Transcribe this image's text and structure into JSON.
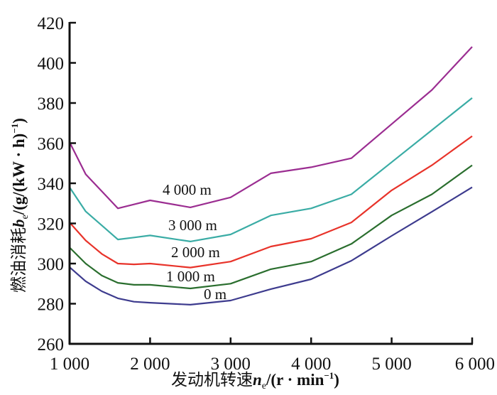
{
  "chart_data": {
    "type": "line",
    "title": "",
    "xlabel": {
      "main": "发动机转速",
      "var": "n",
      "sub": "e",
      "unit_pre": "/(r · min",
      "unit_sup": "−1",
      "unit_post": ")"
    },
    "ylabel": {
      "main": "燃油消耗",
      "var": "b",
      "sub": "e",
      "unit_pre": "/(g/(kW · h)",
      "unit_sup": "−1",
      "unit_post": ")"
    },
    "xlim": [
      1000,
      6000
    ],
    "ylim": [
      260,
      420
    ],
    "xticks": [
      1000,
      2000,
      3000,
      4000,
      5000,
      6000
    ],
    "xtick_labels": [
      "1 000",
      "2 000",
      "3 000",
      "4 000",
      "5 000",
      "6 000"
    ],
    "yticks": [
      260,
      280,
      300,
      320,
      340,
      360,
      380,
      400,
      420
    ],
    "ytick_labels": [
      "260",
      "280",
      "300",
      "320",
      "340",
      "360",
      "380",
      "400",
      "420"
    ],
    "grid": false,
    "x": [
      1000,
      1200,
      1400,
      1600,
      1800,
      2000,
      2500,
      3000,
      3500,
      4000,
      4500,
      5000,
      5500,
      6000
    ],
    "series": [
      {
        "name": "4 000 m",
        "color": "#9b2d91",
        "values": [
          360.5,
          344.5,
          336,
          327.5,
          329.5,
          331.5,
          328,
          333,
          345,
          348,
          352.5,
          369.5,
          386.5,
          408
        ]
      },
      {
        "name": "3 000 m",
        "color": "#3aaca5",
        "values": [
          338,
          326,
          319,
          312,
          313,
          314,
          311,
          314.5,
          324,
          327.5,
          334.5,
          350.5,
          366.5,
          382.5
        ]
      },
      {
        "name": "2 000 m",
        "color": "#e8332a",
        "values": [
          320.5,
          311.5,
          304.8,
          300,
          299.6,
          300,
          298,
          301,
          308.5,
          312.4,
          320.5,
          336.5,
          349,
          363.5
        ]
      },
      {
        "name": "1 000 m",
        "color": "#2a6e2e",
        "values": [
          308,
          300,
          294,
          290.4,
          289.4,
          289.4,
          287.6,
          290,
          297.2,
          301,
          309.8,
          324,
          334.5,
          349
        ]
      },
      {
        "name": "0 m",
        "color": "#3d3b8e",
        "values": [
          298.2,
          291.2,
          286.2,
          282.7,
          281,
          280.5,
          279.5,
          281.6,
          287.3,
          292.2,
          301.4,
          313.8,
          325.8,
          338
        ]
      }
    ]
  }
}
